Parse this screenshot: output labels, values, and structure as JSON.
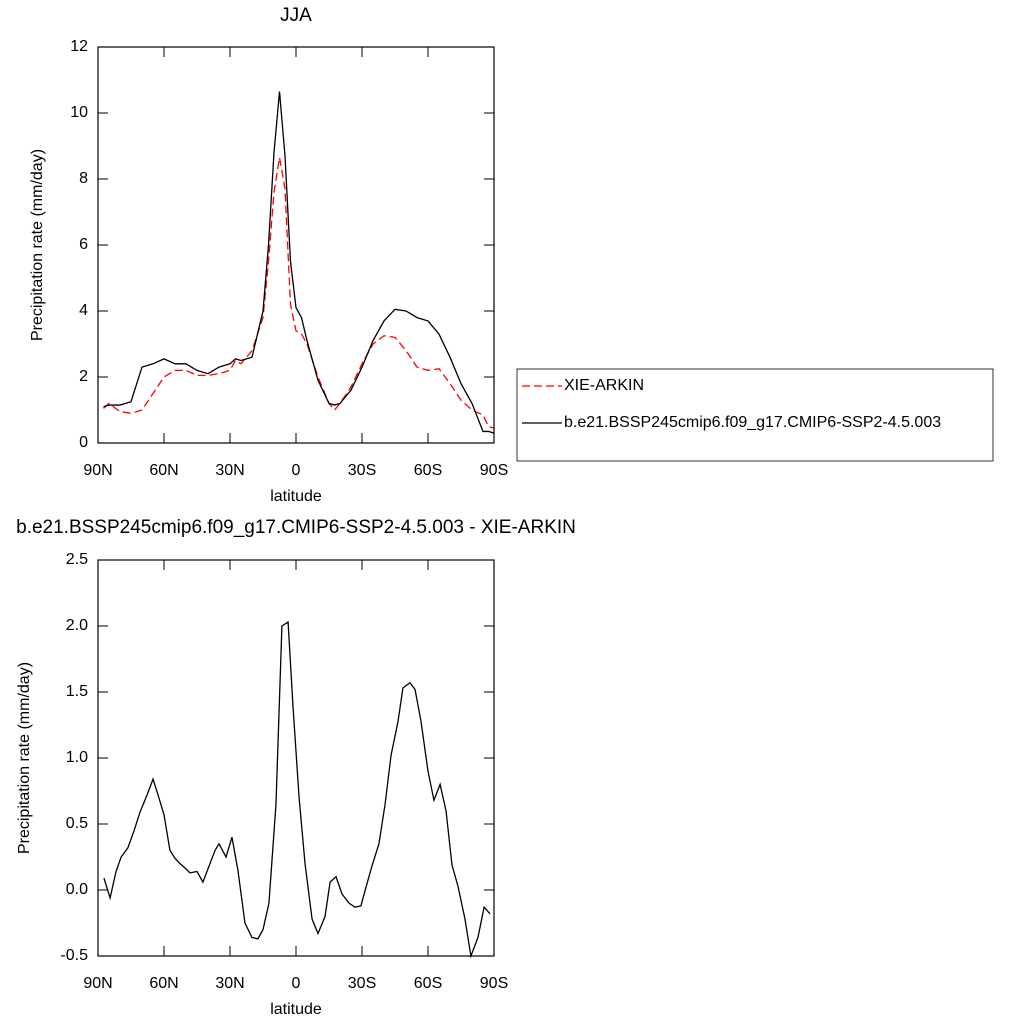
{
  "chart_data": [
    {
      "type": "line",
      "title": "JJA",
      "xlabel": "latitude",
      "ylabel": "Precipitation rate (mm/day)",
      "xlim": [
        90,
        -90
      ],
      "xticks": [
        {
          "value": 90,
          "label": "90N"
        },
        {
          "value": 60,
          "label": "60N"
        },
        {
          "value": 30,
          "label": "30N"
        },
        0,
        {
          "value": -30,
          "label": "30S"
        },
        {
          "value": -60,
          "label": "60S"
        },
        {
          "value": -90,
          "label": "90S"
        }
      ],
      "ylim": [
        0,
        12
      ],
      "yticks": [
        0,
        2,
        4,
        6,
        8,
        10,
        12
      ],
      "legend": "right",
      "x": [
        87.5,
        85,
        80,
        75,
        70,
        65,
        60,
        55,
        50,
        45,
        40,
        35,
        30,
        27.5,
        25,
        20,
        15,
        12.5,
        10,
        7.5,
        5,
        2.5,
        0,
        -2.5,
        -5,
        -10,
        -15,
        -17.5,
        -20,
        -25,
        -30,
        -35,
        -40,
        -45,
        -50,
        -55,
        -60,
        -65,
        -70,
        -75,
        -80,
        -85,
        -87.5,
        -90
      ],
      "series": [
        {
          "name": "XIE-ARKIN",
          "color": "#ff0000",
          "dash": "dashed",
          "values": [
            1.05,
            1.2,
            0.95,
            0.9,
            1.0,
            1.5,
            2.0,
            2.2,
            2.2,
            2.05,
            2.05,
            2.1,
            2.2,
            2.5,
            2.4,
            2.8,
            3.8,
            5.5,
            7.6,
            8.65,
            7.7,
            4.2,
            3.4,
            3.3,
            3.0,
            2.0,
            1.2,
            1.0,
            1.2,
            1.7,
            2.4,
            3.0,
            3.25,
            3.2,
            2.8,
            2.3,
            2.2,
            2.25,
            1.8,
            1.3,
            1.0,
            0.85,
            0.5,
            0.45
          ]
        },
        {
          "name": "b.e21.BSSP245cmip6.f09_g17.CMIP6-SSP2-4.5.003",
          "color": "#000000",
          "dash": "solid",
          "values": [
            1.1,
            1.15,
            1.15,
            1.25,
            2.3,
            2.4,
            2.55,
            2.4,
            2.4,
            2.2,
            2.1,
            2.3,
            2.4,
            2.55,
            2.5,
            2.6,
            4.0,
            6.0,
            8.8,
            10.65,
            8.7,
            5.5,
            4.1,
            3.8,
            3.1,
            1.9,
            1.2,
            1.15,
            1.2,
            1.6,
            2.3,
            3.1,
            3.7,
            4.05,
            4.0,
            3.8,
            3.7,
            3.3,
            2.6,
            1.8,
            1.2,
            0.35,
            0.35,
            0.3
          ]
        }
      ]
    },
    {
      "type": "line",
      "title": "b.e21.BSSP245cmip6.f09_g17.CMIP6-SSP2-4.5.003 - XIE-ARKIN",
      "xlabel": "latitude",
      "ylabel": "Precipitation rate (mm/day)",
      "xlim": [
        90,
        -90
      ],
      "xticks": [
        {
          "value": 90,
          "label": "90N"
        },
        {
          "value": 60,
          "label": "60N"
        },
        {
          "value": 30,
          "label": "30N"
        },
        0,
        {
          "value": -30,
          "label": "30S"
        },
        {
          "value": -60,
          "label": "60S"
        },
        {
          "value": -90,
          "label": "90S"
        }
      ],
      "ylim": [
        -0.5,
        2.5
      ],
      "yticks": [
        -0.5,
        {
          "value": 0,
          "label": "0.0"
        },
        0.5,
        {
          "value": 1,
          "label": "1.0"
        },
        1.5,
        {
          "value": 2,
          "label": "2.0"
        },
        2.5
      ],
      "x": [
        87.3,
        84.5,
        81.8,
        79.5,
        76.4,
        73.6,
        70.9,
        67.7,
        65,
        62.7,
        60,
        57.3,
        55,
        52.7,
        50,
        48.2,
        45,
        42.3,
        39.1,
        36.8,
        35,
        31.8,
        29.1,
        26.4,
        23.2,
        20,
        17.3,
        15,
        12.3,
        9.1,
        6.4,
        3.6,
        1.4,
        -1.4,
        -4.1,
        -7.3,
        -10,
        -13.2,
        -15.5,
        -18.2,
        -20.9,
        -24.1,
        -26.8,
        -29.5,
        -32.3,
        -34.5,
        -37.7,
        -40.5,
        -43.2,
        -46.4,
        -48.6,
        -51.8,
        -54.1,
        -56.8,
        -60,
        -62.7,
        -65.5,
        -68.2,
        -70.9,
        -73.6,
        -76.8,
        -79.5,
        -82.7,
        -85.5,
        -88.2
      ],
      "series": [
        {
          "color": "#000000",
          "dash": "solid",
          "values": [
            0.09,
            -0.06,
            0.14,
            0.25,
            0.32,
            0.45,
            0.59,
            0.72,
            0.84,
            0.72,
            0.57,
            0.3,
            0.24,
            0.2,
            0.16,
            0.13,
            0.14,
            0.06,
            0.2,
            0.3,
            0.35,
            0.25,
            0.4,
            0.15,
            -0.25,
            -0.36,
            -0.37,
            -0.3,
            -0.1,
            0.65,
            2.0,
            2.03,
            1.4,
            0.7,
            0.2,
            -0.22,
            -0.33,
            -0.2,
            0.06,
            0.1,
            -0.03,
            -0.1,
            -0.13,
            -0.12,
            0.05,
            0.18,
            0.35,
            0.65,
            1.02,
            1.28,
            1.53,
            1.57,
            1.52,
            1.28,
            0.9,
            0.68,
            0.8,
            0.6,
            0.19,
            0.03,
            -0.22,
            -0.5,
            -0.36,
            -0.13,
            -0.18
          ]
        }
      ]
    }
  ]
}
